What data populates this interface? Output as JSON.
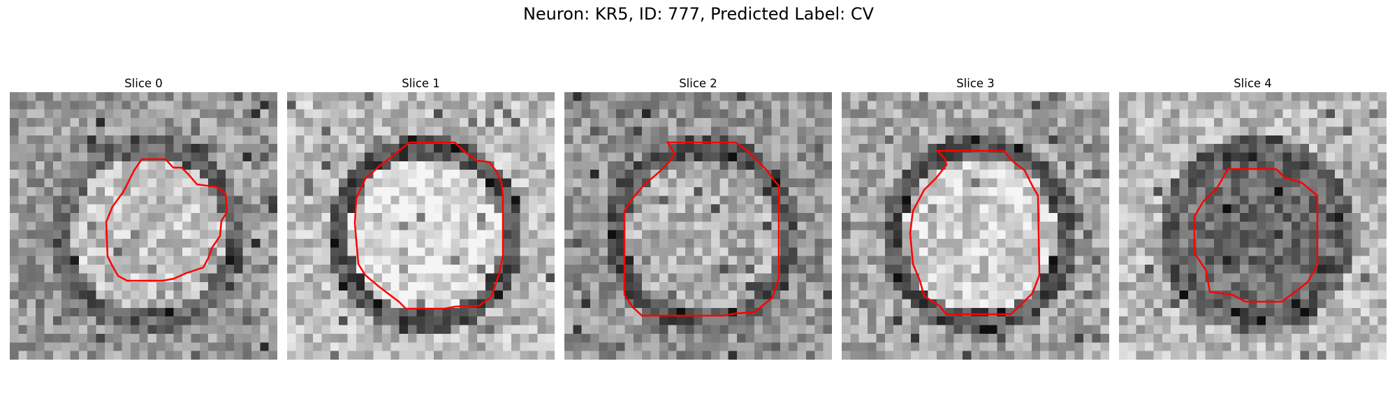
{
  "figure": {
    "title": "Neuron: KR5, ID: 777, Predicted Label: CV"
  },
  "panels": [
    {
      "title": "Slice 0",
      "seed": 11,
      "base": 155,
      "ring_dark": 95,
      "center_light": 195,
      "contour_color": "#ff0000"
    },
    {
      "title": "Slice 1",
      "seed": 23,
      "base": 190,
      "ring_dark": 80,
      "center_light": 225,
      "contour_color": "#ff0000"
    },
    {
      "title": "Slice 2",
      "seed": 37,
      "base": 150,
      "ring_dark": 90,
      "center_light": 175,
      "contour_color": "#ff0000"
    },
    {
      "title": "Slice 3",
      "seed": 41,
      "base": 165,
      "ring_dark": 85,
      "center_light": 205,
      "contour_color": "#ff0000"
    },
    {
      "title": "Slice 4",
      "seed": 53,
      "base": 185,
      "ring_dark": 95,
      "center_light": 110,
      "contour_color": "#ff0000"
    }
  ]
}
